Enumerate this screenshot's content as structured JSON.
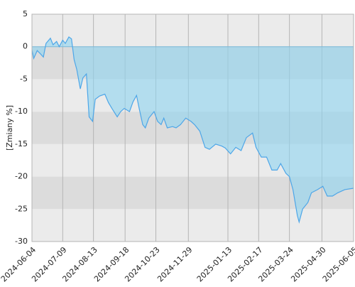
{
  "chart_data": {
    "type": "area",
    "ylabel": "[Zmiany %]",
    "x": [
      "2024-06-04",
      "2024-06-06",
      "2024-06-10",
      "2024-06-13",
      "2024-06-17",
      "2024-06-20",
      "2024-06-25",
      "2024-06-28",
      "2024-07-02",
      "2024-07-05",
      "2024-07-09",
      "2024-07-12",
      "2024-07-16",
      "2024-07-19",
      "2024-07-22",
      "2024-07-25",
      "2024-07-29",
      "2024-08-01",
      "2024-08-05",
      "2024-08-08",
      "2024-08-12",
      "2024-08-15",
      "2024-08-20",
      "2024-08-26",
      "2024-08-30",
      "2024-09-03",
      "2024-09-09",
      "2024-09-13",
      "2024-09-17",
      "2024-09-23",
      "2024-09-27",
      "2024-10-01",
      "2024-10-04",
      "2024-10-08",
      "2024-10-11",
      "2024-10-15",
      "2024-10-21",
      "2024-10-25",
      "2024-10-29",
      "2024-11-01",
      "2024-11-05",
      "2024-11-11",
      "2024-11-15",
      "2024-11-20",
      "2024-11-26",
      "2024-12-02",
      "2024-12-06",
      "2024-12-12",
      "2024-12-18",
      "2024-12-23",
      "2024-12-30",
      "2025-01-06",
      "2025-01-10",
      "2025-01-16",
      "2025-01-22",
      "2025-01-28",
      "2025-02-03",
      "2025-02-10",
      "2025-02-14",
      "2025-02-20",
      "2025-02-26",
      "2025-03-04",
      "2025-03-10",
      "2025-03-14",
      "2025-03-20",
      "2025-03-24",
      "2025-03-28",
      "2025-04-02",
      "2025-04-04",
      "2025-04-08",
      "2025-04-14",
      "2025-04-18",
      "2025-04-25",
      "2025-05-01",
      "2025-05-06",
      "2025-05-12",
      "2025-05-18",
      "2025-05-26",
      "2025-06-05"
    ],
    "values": [
      -0.5,
      -1.8,
      -0.6,
      -1.0,
      -1.6,
      0.5,
      1.3,
      0.3,
      0.8,
      0.0,
      1.0,
      0.5,
      1.5,
      1.2,
      -2.0,
      -3.5,
      -6.5,
      -4.8,
      -4.2,
      -10.8,
      -11.5,
      -8.1,
      -7.6,
      -7.3,
      -8.6,
      -9.5,
      -10.8,
      -10.0,
      -9.5,
      -10.0,
      -8.5,
      -7.5,
      -9.5,
      -12.0,
      -12.5,
      -11.0,
      -10.0,
      -11.5,
      -12.0,
      -11.0,
      -12.5,
      -12.3,
      -12.5,
      -12.0,
      -11.0,
      -11.5,
      -12.0,
      -13.0,
      -15.5,
      -15.8,
      -15.0,
      -15.3,
      -15.6,
      -16.5,
      -15.5,
      -16.0,
      -14.0,
      -13.3,
      -15.5,
      -17.0,
      -17.0,
      -19.0,
      -19.0,
      -18.0,
      -19.5,
      -20.0,
      -22.0,
      -26.0,
      -27.0,
      -25.0,
      -24.0,
      -22.5,
      -22.0,
      -21.5,
      -23.0,
      -23.0,
      -22.5,
      -22.0,
      -21.8
    ],
    "color": "#4da6e8",
    "xlim": [
      "2024-06-04",
      "2025-06-05"
    ],
    "xticks": [
      "2024-06-04",
      "2024-07-09",
      "2024-08-13",
      "2024-09-18",
      "2024-10-23",
      "2024-11-29",
      "2025-01-13",
      "2025-02-17",
      "2025-03-24",
      "2025-04-30",
      "2025-06-05"
    ],
    "ylim": [
      -30,
      5
    ],
    "yticks": [
      -30,
      -25,
      -20,
      -15,
      -10,
      -5,
      0,
      5
    ],
    "grid": true
  }
}
